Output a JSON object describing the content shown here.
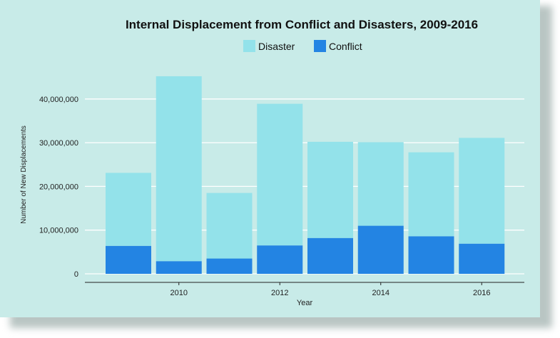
{
  "chart_data": {
    "type": "bar",
    "stacked": true,
    "title": "Internal Displacement from Conflict and Disasters, 2009-2016",
    "xlabel": "Year",
    "ylabel": "Number of New Displacements",
    "categories": [
      "2009",
      "2010",
      "2011",
      "2012",
      "2013",
      "2014",
      "2015",
      "2016"
    ],
    "x_tick_labels": [
      "2010",
      "2012",
      "2014",
      "2016"
    ],
    "y_tick_labels": [
      "0",
      "10,000,000",
      "20,000,000",
      "30,000,000",
      "40,000,000"
    ],
    "ylim": [
      0,
      46000000
    ],
    "legend": [
      "Disaster",
      "Conflict"
    ],
    "legend_position": "top",
    "grid": "horizontal",
    "series": [
      {
        "name": "Conflict",
        "color": "#2384e3",
        "values": [
          6400000,
          2900000,
          3500000,
          6500000,
          8200000,
          11000000,
          8600000,
          6900000
        ]
      },
      {
        "name": "Disaster",
        "color": "#93e2ea",
        "values": [
          16700000,
          42300000,
          15000000,
          32400000,
          22000000,
          19100000,
          19200000,
          24200000
        ]
      }
    ]
  }
}
